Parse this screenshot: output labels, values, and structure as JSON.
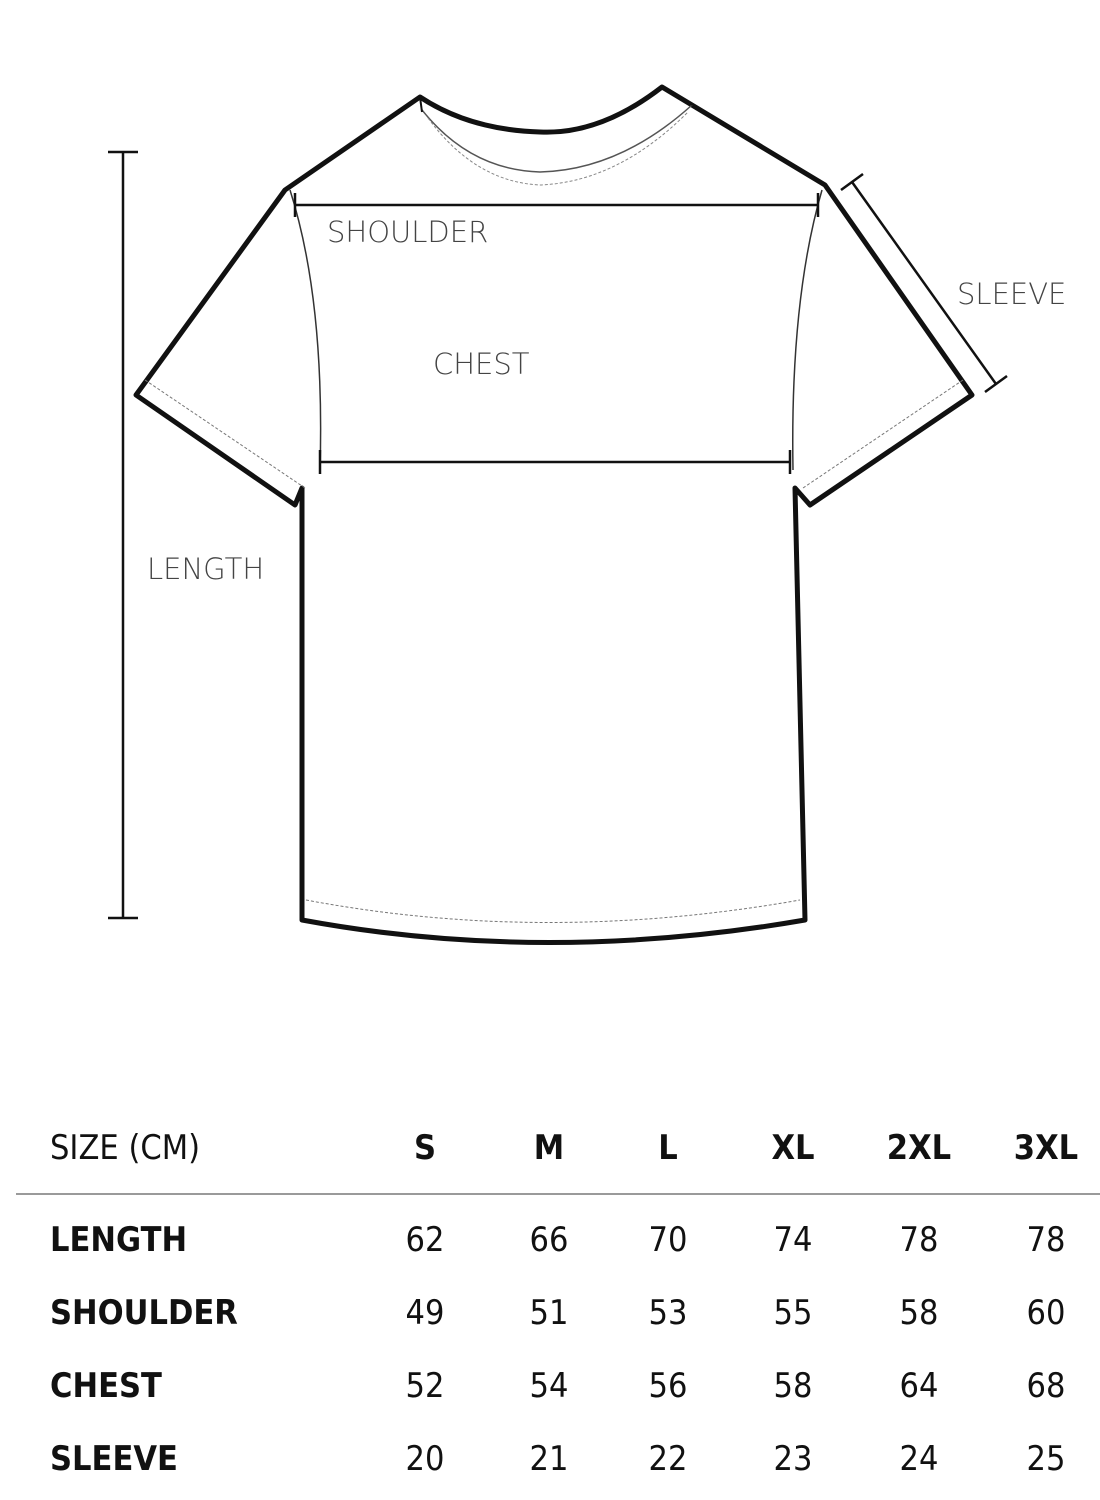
{
  "diagram": {
    "labels": {
      "shoulder": "SHOULDER",
      "chest": "CHEST",
      "sleeve": "SLEEVE",
      "length": "LENGTH"
    }
  },
  "table": {
    "header": {
      "label": "SIZE (CM)",
      "sizes": [
        "S",
        "M",
        "L",
        "XL",
        "2XL",
        "3XL"
      ]
    },
    "rows": [
      {
        "label": "LENGTH",
        "values": [
          "62",
          "66",
          "70",
          "74",
          "78",
          "78"
        ]
      },
      {
        "label": "SHOULDER",
        "values": [
          "49",
          "51",
          "53",
          "55",
          "58",
          "60"
        ]
      },
      {
        "label": "CHEST",
        "values": [
          "52",
          "54",
          "56",
          "58",
          "64",
          "68"
        ]
      },
      {
        "label": "SLEEVE",
        "values": [
          "20",
          "21",
          "22",
          "23",
          "24",
          "25"
        ]
      }
    ]
  }
}
